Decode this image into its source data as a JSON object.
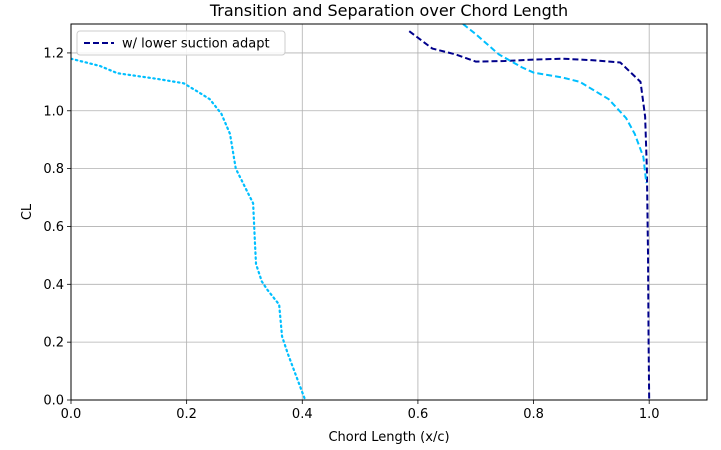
{
  "chart_data": {
    "type": "line",
    "title": "Transition and Separation over Chord Length",
    "xlabel": "Chord Length (x/c)",
    "ylabel": "CL",
    "xlim": [
      0.0,
      1.1
    ],
    "ylim": [
      0.0,
      1.3
    ],
    "xticks": [
      "0.0",
      "0.2",
      "0.4",
      "0.6",
      "0.8",
      "1.0"
    ],
    "yticks": [
      "0.0",
      "0.2",
      "0.4",
      "0.6",
      "0.8",
      "1.0",
      "1.2"
    ],
    "grid": true,
    "legend_position": "top-left",
    "series": [
      {
        "name": "w/ lower suction adapt",
        "color": "#00008b",
        "style": "dashed",
        "in_legend": true,
        "points": [
          [
            0.585,
            1.275
          ],
          [
            0.625,
            1.215
          ],
          [
            0.665,
            1.195
          ],
          [
            0.7,
            1.17
          ],
          [
            0.75,
            1.172
          ],
          [
            0.8,
            1.177
          ],
          [
            0.85,
            1.18
          ],
          [
            0.9,
            1.175
          ],
          [
            0.95,
            1.167
          ],
          [
            0.985,
            1.1
          ],
          [
            0.993,
            0.98
          ],
          [
            0.996,
            0.8
          ],
          [
            0.998,
            0.5
          ],
          [
            0.999,
            0.2
          ],
          [
            1.0,
            0.0
          ]
        ]
      },
      {
        "color": "#00bfff",
        "style": "dashed",
        "in_legend": false,
        "points": [
          [
            0.678,
            1.3
          ],
          [
            0.7,
            1.265
          ],
          [
            0.74,
            1.195
          ],
          [
            0.78,
            1.15
          ],
          [
            0.8,
            1.132
          ],
          [
            0.85,
            1.115
          ],
          [
            0.88,
            1.1
          ],
          [
            0.93,
            1.04
          ],
          [
            0.96,
            0.975
          ],
          [
            0.975,
            0.92
          ],
          [
            0.99,
            0.84
          ],
          [
            0.995,
            0.75
          ]
        ]
      },
      {
        "color": "#00bfff",
        "style": "dotted",
        "in_legend": false,
        "points": [
          [
            0.0,
            1.18
          ],
          [
            0.05,
            1.155
          ],
          [
            0.08,
            1.13
          ],
          [
            0.15,
            1.11
          ],
          [
            0.195,
            1.095
          ],
          [
            0.22,
            1.065
          ],
          [
            0.24,
            1.04
          ],
          [
            0.26,
            0.99
          ],
          [
            0.275,
            0.92
          ],
          [
            0.285,
            0.8
          ],
          [
            0.3,
            0.74
          ],
          [
            0.315,
            0.68
          ],
          [
            0.318,
            0.55
          ],
          [
            0.32,
            0.47
          ],
          [
            0.33,
            0.41
          ],
          [
            0.34,
            0.38
          ],
          [
            0.36,
            0.33
          ],
          [
            0.365,
            0.22
          ],
          [
            0.375,
            0.16
          ],
          [
            0.39,
            0.08
          ],
          [
            0.405,
            0.0
          ]
        ]
      }
    ]
  }
}
